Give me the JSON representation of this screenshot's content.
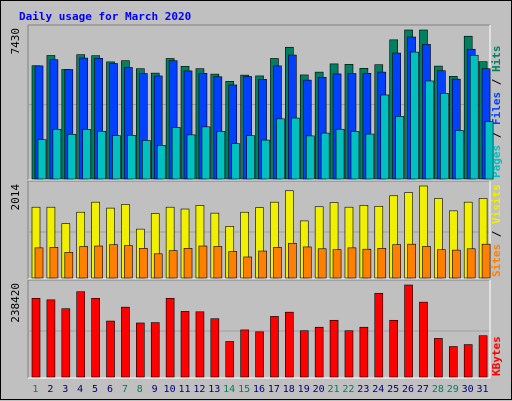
{
  "chart_data": {
    "type": "bar",
    "title": "Daily usage for March 2020",
    "categories": [
      "1",
      "2",
      "3",
      "4",
      "5",
      "6",
      "7",
      "8",
      "9",
      "10",
      "11",
      "12",
      "13",
      "14",
      "15",
      "16",
      "17",
      "18",
      "19",
      "20",
      "21",
      "22",
      "23",
      "24",
      "25",
      "26",
      "27",
      "28",
      "29",
      "30",
      "31"
    ],
    "weekend_days": [
      "1",
      "7",
      "8",
      "14",
      "15",
      "21",
      "22",
      "28",
      "29"
    ],
    "panels": [
      {
        "id": "top",
        "max_label": "7430",
        "ymax": 7430,
        "right_labels": [
          {
            "text": "Pages",
            "color": "#00c0c0"
          },
          {
            "text": "Files",
            "color": "#0040ff"
          },
          {
            "text": "Hits",
            "color": "#008060"
          }
        ],
        "series": [
          {
            "name": "Hits",
            "color": "#008060",
            "values": [
              5650,
              6160,
              5460,
              6200,
              6150,
              5840,
              5900,
              5500,
              5280,
              6010,
              5620,
              5500,
              5230,
              4870,
              5180,
              5140,
              6010,
              6570,
              5190,
              5330,
              5740,
              5720,
              5520,
              5700,
              6940,
              7430,
              7430,
              5630,
              5120,
              7120,
              5850
            ]
          },
          {
            "name": "Files",
            "color": "#0040ff",
            "values": [
              5640,
              5950,
              5460,
              6030,
              6020,
              5760,
              5560,
              5260,
              5140,
              5900,
              5390,
              5270,
              5100,
              4690,
              5110,
              4970,
              5640,
              6180,
              4930,
              5070,
              5240,
              5260,
              5270,
              5330,
              6280,
              7080,
              6710,
              5400,
              4980,
              6470,
              5500
            ]
          },
          {
            "name": "Pages",
            "color": "#00c0c0",
            "values": [
              1960,
              2480,
              2230,
              2470,
              2380,
              2160,
              2180,
              1920,
              1680,
              2570,
              2200,
              2600,
              2370,
              1760,
              2160,
              1940,
              3000,
              3040,
              2150,
              2290,
              2480,
              2370,
              2240,
              4190,
              3120,
              6330,
              4890,
              4270,
              2420,
              6170,
              2860
            ]
          }
        ]
      },
      {
        "id": "middle",
        "max_label": "2014",
        "ymax": 2014,
        "right_labels": [
          {
            "text": "Sites",
            "color": "#ff8000"
          },
          {
            "text": "Visits",
            "color": "#f0f000"
          }
        ],
        "series": [
          {
            "name": "Visits",
            "color": "#f0f000",
            "values": [
              1550,
              1550,
              1190,
              1440,
              1660,
              1530,
              1610,
              1070,
              1410,
              1550,
              1510,
              1590,
              1420,
              1130,
              1440,
              1540,
              1660,
              1910,
              1250,
              1560,
              1650,
              1550,
              1590,
              1570,
              1800,
              1870,
              2014,
              1740,
              1470,
              1660,
              1740
            ]
          },
          {
            "name": "Sites",
            "color": "#ff8000",
            "values": [
              660,
              670,
              560,
              690,
              700,
              730,
              710,
              650,
              530,
              600,
              650,
              700,
              690,
              580,
              460,
              590,
              670,
              760,
              680,
              640,
              620,
              660,
              630,
              650,
              730,
              740,
              690,
              620,
              610,
              640,
              740
            ]
          }
        ]
      },
      {
        "id": "bottom",
        "max_label": "238420",
        "ymax": 238420,
        "right_labels": [
          {
            "text": "KBytes",
            "color": "#ff0000"
          }
        ],
        "series": [
          {
            "name": "KBytes",
            "color": "#ff0000",
            "values": [
              204000,
              200000,
              177000,
              221000,
              204000,
              145000,
              181000,
              140000,
              141000,
              204000,
              170000,
              169000,
              151000,
              92000,
              122000,
              117000,
              157000,
              168000,
              120000,
              129000,
              147000,
              120000,
              129000,
              217000,
              147000,
              238420,
              194000,
              100000,
              79000,
              84000,
              107000
            ]
          }
        ]
      }
    ]
  }
}
